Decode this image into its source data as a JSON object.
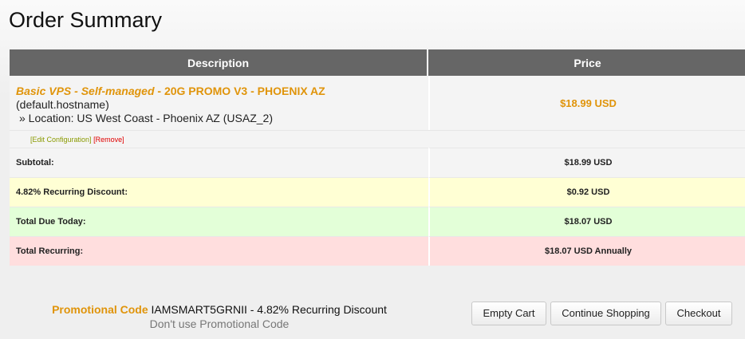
{
  "title": "Order Summary",
  "table": {
    "headers": {
      "description": "Description",
      "price": "Price"
    },
    "item": {
      "name_italic": "Basic VPS - Self-managed",
      "name_rest": " - 20G PROMO V3 - PHOENIX AZ",
      "hostname": "(default.hostname)",
      "option": "» Location: US West Coast - Phoenix AZ (USAZ_2)",
      "price": "$18.99 USD",
      "edit_label": "[Edit Configuration]",
      "remove_label": "[Remove]"
    },
    "summary": [
      {
        "label": "Subtotal:",
        "value": "$18.99 USD"
      },
      {
        "label": "4.82% Recurring Discount:",
        "value": "$0.92 USD"
      },
      {
        "label": "Total Due Today:",
        "value": "$18.07 USD"
      },
      {
        "label": "Total Recurring:",
        "value": "$18.07 USD Annually"
      }
    ]
  },
  "promo": {
    "label": "Promotional Code",
    "text": " IAMSMART5GRNII - 4.82% Recurring Discount",
    "remove_link": "Don't use Promotional Code"
  },
  "buttons": {
    "empty": "Empty Cart",
    "continue": "Continue Shopping",
    "checkout": "Checkout"
  },
  "colors": {
    "accent": "#e0940a",
    "edit": "#8a9a00",
    "remove": "#e00000"
  }
}
